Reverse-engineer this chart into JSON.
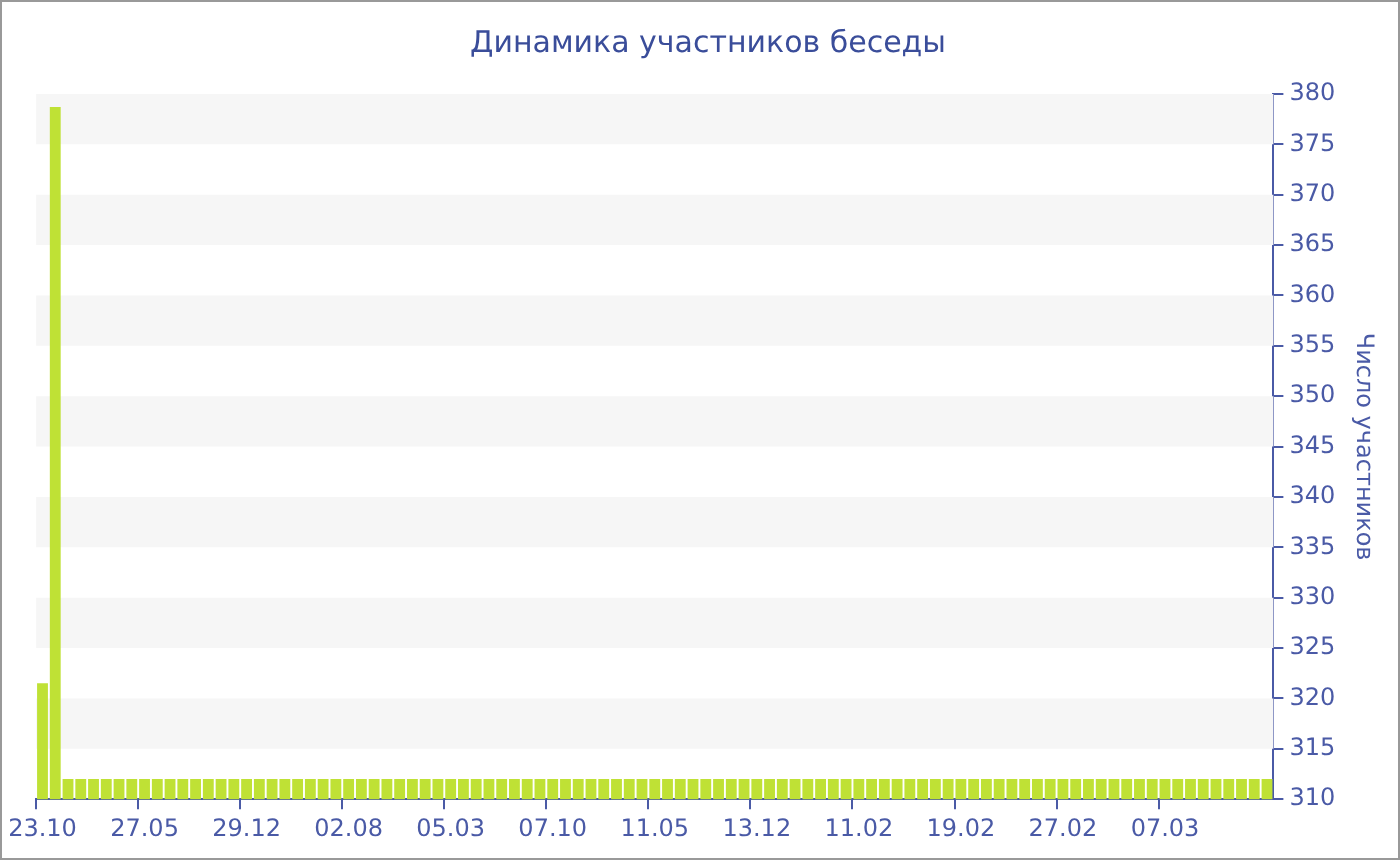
{
  "chart_data": {
    "type": "bar",
    "title": "Динамика участников беседы",
    "ylabel": "Число участников",
    "categories": [
      "23.10",
      null,
      null,
      null,
      null,
      null,
      null,
      null,
      "27.05",
      null,
      null,
      null,
      null,
      null,
      null,
      null,
      "29.12",
      null,
      null,
      null,
      null,
      null,
      null,
      null,
      "02.08",
      null,
      null,
      null,
      null,
      null,
      null,
      null,
      "05.03",
      null,
      null,
      null,
      null,
      null,
      null,
      null,
      "07.10",
      null,
      null,
      null,
      null,
      null,
      null,
      null,
      "11.05",
      null,
      null,
      null,
      null,
      null,
      null,
      null,
      "13.12",
      null,
      null,
      null,
      null,
      null,
      null,
      null,
      "11.02",
      null,
      null,
      null,
      null,
      null,
      null,
      null,
      "19.02",
      null,
      null,
      null,
      null,
      null,
      null,
      null,
      "27.02",
      null,
      null,
      null,
      null,
      null,
      null,
      null,
      "07.03",
      null,
      null,
      null,
      null,
      null,
      null,
      null,
      null
    ],
    "values": [
      321.5,
      378.7,
      312,
      312,
      312,
      312,
      312,
      312,
      312,
      312,
      312,
      312,
      312,
      312,
      312,
      312,
      312,
      312,
      312,
      312,
      312,
      312,
      312,
      312,
      312,
      312,
      312,
      312,
      312,
      312,
      312,
      312,
      312,
      312,
      312,
      312,
      312,
      312,
      312,
      312,
      312,
      312,
      312,
      312,
      312,
      312,
      312,
      312,
      312,
      312,
      312,
      312,
      312,
      312,
      312,
      312,
      312,
      312,
      312,
      312,
      312,
      312,
      312,
      312,
      312,
      312,
      312,
      312,
      312,
      312,
      312,
      312,
      312,
      312,
      312,
      312,
      312,
      312,
      312,
      312,
      312,
      312,
      312,
      312,
      312,
      312,
      312,
      312,
      312,
      312,
      312,
      312,
      312,
      312,
      312,
      312,
      312
    ],
    "color": "#bfe135",
    "ylim": [
      310,
      380
    ],
    "yticks": [
      310,
      315,
      320,
      325,
      330,
      335,
      340,
      345,
      350,
      355,
      360,
      365,
      370,
      375,
      380
    ],
    "bands": [
      {
        "axis": "y",
        "from": 375,
        "to": 380,
        "color": "#f6f6f6"
      },
      {
        "axis": "y",
        "from": 365,
        "to": 370,
        "color": "#f6f6f6"
      },
      {
        "axis": "y",
        "from": 355,
        "to": 360,
        "color": "#f6f6f6"
      },
      {
        "axis": "y",
        "from": 345,
        "to": 350,
        "color": "#f6f6f6"
      },
      {
        "axis": "y",
        "from": 335,
        "to": 340,
        "color": "#f6f6f6"
      },
      {
        "axis": "y",
        "from": 325,
        "to": 330,
        "color": "#f6f6f6"
      },
      {
        "axis": "y",
        "from": 315,
        "to": 320,
        "color": "#f6f6f6"
      }
    ]
  }
}
